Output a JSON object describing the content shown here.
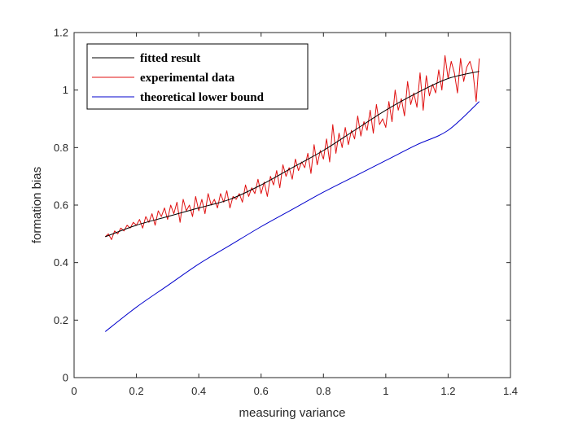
{
  "chart_data": {
    "type": "line",
    "title": "",
    "xlabel": "measuring variance",
    "ylabel": "formation bias",
    "xlim": [
      0,
      1.4
    ],
    "ylim": [
      0,
      1.2
    ],
    "xticks": [
      0,
      0.2,
      0.4,
      0.6,
      0.8,
      1,
      1.2,
      1.4
    ],
    "xtick_labels": [
      "0",
      "0.2",
      "0.4",
      "0.6",
      "0.8",
      "1",
      "1.2",
      "1.4"
    ],
    "yticks": [
      0,
      0.2,
      0.4,
      0.6,
      0.8,
      1,
      1.2
    ],
    "ytick_labels": [
      "0",
      "0.2",
      "0.4",
      "0.6",
      "0.8",
      "1",
      "1.2"
    ],
    "grid": false,
    "legend_position": "top-left",
    "series": [
      {
        "name": "fitted result",
        "color": "#000000",
        "x": [
          0.1,
          0.2,
          0.3,
          0.4,
          0.5,
          0.6,
          0.7,
          0.8,
          0.9,
          1.0,
          1.1,
          1.2,
          1.3
        ],
        "y": [
          0.49,
          0.53,
          0.56,
          0.59,
          0.62,
          0.67,
          0.73,
          0.79,
          0.86,
          0.93,
          0.99,
          1.04,
          1.065
        ]
      },
      {
        "name": "experimental data",
        "color": "#e01010",
        "x": [
          0.1,
          0.11,
          0.12,
          0.13,
          0.14,
          0.15,
          0.16,
          0.17,
          0.18,
          0.19,
          0.2,
          0.21,
          0.22,
          0.23,
          0.24,
          0.25,
          0.26,
          0.27,
          0.28,
          0.29,
          0.3,
          0.31,
          0.32,
          0.33,
          0.34,
          0.35,
          0.36,
          0.37,
          0.38,
          0.39,
          0.4,
          0.41,
          0.42,
          0.43,
          0.44,
          0.45,
          0.46,
          0.47,
          0.48,
          0.49,
          0.5,
          0.51,
          0.52,
          0.53,
          0.54,
          0.55,
          0.56,
          0.57,
          0.58,
          0.59,
          0.6,
          0.61,
          0.62,
          0.63,
          0.64,
          0.65,
          0.66,
          0.67,
          0.68,
          0.69,
          0.7,
          0.71,
          0.72,
          0.73,
          0.74,
          0.75,
          0.76,
          0.77,
          0.78,
          0.79,
          0.8,
          0.81,
          0.82,
          0.83,
          0.84,
          0.85,
          0.86,
          0.87,
          0.88,
          0.89,
          0.9,
          0.91,
          0.92,
          0.93,
          0.94,
          0.95,
          0.96,
          0.97,
          0.98,
          0.99,
          1.0,
          1.01,
          1.02,
          1.03,
          1.04,
          1.05,
          1.06,
          1.07,
          1.08,
          1.09,
          1.1,
          1.11,
          1.12,
          1.13,
          1.14,
          1.15,
          1.16,
          1.17,
          1.18,
          1.19,
          1.2,
          1.21,
          1.22,
          1.23,
          1.24,
          1.25,
          1.26,
          1.27,
          1.28,
          1.29,
          1.3
        ],
        "y": [
          0.49,
          0.5,
          0.48,
          0.51,
          0.5,
          0.52,
          0.51,
          0.53,
          0.52,
          0.54,
          0.53,
          0.55,
          0.52,
          0.56,
          0.54,
          0.57,
          0.53,
          0.58,
          0.56,
          0.59,
          0.55,
          0.6,
          0.57,
          0.61,
          0.54,
          0.62,
          0.58,
          0.6,
          0.56,
          0.63,
          0.58,
          0.62,
          0.57,
          0.64,
          0.6,
          0.62,
          0.59,
          0.64,
          0.61,
          0.65,
          0.59,
          0.63,
          0.62,
          0.64,
          0.61,
          0.67,
          0.63,
          0.66,
          0.64,
          0.69,
          0.64,
          0.68,
          0.63,
          0.7,
          0.67,
          0.72,
          0.66,
          0.74,
          0.7,
          0.73,
          0.69,
          0.76,
          0.72,
          0.75,
          0.73,
          0.78,
          0.71,
          0.81,
          0.74,
          0.79,
          0.76,
          0.83,
          0.75,
          0.88,
          0.78,
          0.85,
          0.8,
          0.87,
          0.81,
          0.86,
          0.83,
          0.91,
          0.84,
          0.89,
          0.86,
          0.93,
          0.85,
          0.95,
          0.88,
          0.9,
          0.87,
          0.96,
          0.89,
          1.0,
          0.93,
          0.97,
          0.91,
          1.03,
          0.95,
          0.99,
          0.94,
          1.06,
          0.93,
          1.05,
          0.98,
          1.02,
          0.99,
          1.07,
          1.0,
          1.12,
          1.04,
          1.1,
          1.06,
          0.99,
          1.11,
          1.03,
          1.08,
          1.1,
          1.06,
          0.96,
          1.11
        ],
        "y_note": "noisy measurements around the fitted curve"
      },
      {
        "name": "theoretical lower bound",
        "color": "#0000cc",
        "x": [
          0.1,
          0.2,
          0.3,
          0.4,
          0.5,
          0.6,
          0.7,
          0.8,
          0.9,
          1.0,
          1.1,
          1.2,
          1.3
        ],
        "y": [
          0.16,
          0.245,
          0.32,
          0.395,
          0.46,
          0.525,
          0.585,
          0.645,
          0.7,
          0.755,
          0.81,
          0.86,
          0.96
        ]
      }
    ]
  }
}
